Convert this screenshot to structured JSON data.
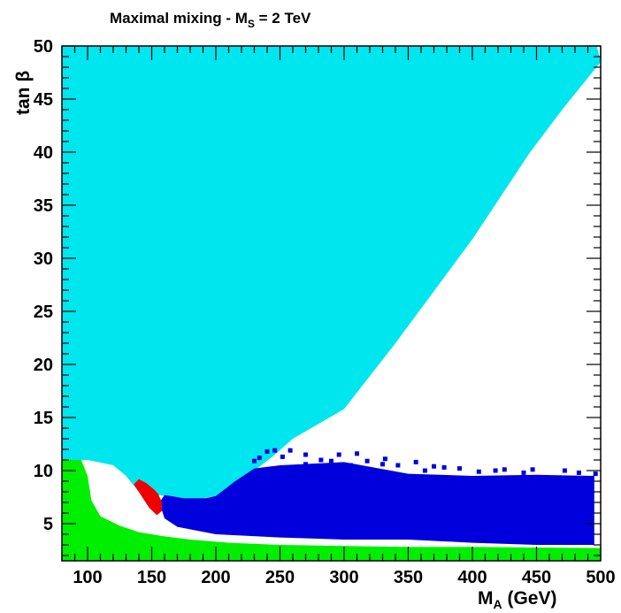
{
  "chart_data": {
    "type": "area",
    "title": "Maximal mixing - M",
    "title_sub": "S",
    "title_suffix": " = 2 TeV",
    "xlabel": "M",
    "xlabel_sub": "A",
    "xlabel_suffix": " (GeV)",
    "ylabel": "tan β",
    "xlim": [
      80,
      500
    ],
    "ylim": [
      1.5,
      50
    ],
    "xticks": [
      100,
      150,
      200,
      250,
      300,
      350,
      400,
      450,
      500
    ],
    "yticks": [
      5,
      10,
      15,
      20,
      25,
      30,
      35,
      40,
      45,
      50
    ],
    "grid": false,
    "colors": {
      "excluded_cyan": "#00e6ee",
      "allowed_blue": "#0000dd",
      "allowed_green": "#00ee00",
      "allowed_red": "#ee0000",
      "background": "#ffffff"
    },
    "regions": [
      {
        "color_key": "excluded_cyan",
        "polygon": [
          [
            80,
            50
          ],
          [
            497,
            50
          ],
          [
            500,
            48.5
          ],
          [
            470,
            44
          ],
          [
            445,
            40
          ],
          [
            400,
            31.8
          ],
          [
            340,
            22
          ],
          [
            300,
            15.8
          ],
          [
            260,
            13
          ],
          [
            245,
            11.4
          ],
          [
            230,
            10
          ],
          [
            200,
            7.6
          ],
          [
            190,
            7.4
          ],
          [
            175,
            7.4
          ],
          [
            155,
            7.7
          ],
          [
            140,
            8
          ],
          [
            130,
            9.5
          ],
          [
            120,
            10.5
          ],
          [
            100,
            11
          ],
          [
            80,
            11
          ]
        ]
      },
      {
        "color_key": "allowed_blue",
        "polygon": [
          [
            160,
            7.7
          ],
          [
            175,
            7.4
          ],
          [
            192,
            7.4
          ],
          [
            200,
            7.6
          ],
          [
            215,
            9
          ],
          [
            230,
            10.2
          ],
          [
            250,
            10.5
          ],
          [
            300,
            10.8
          ],
          [
            350,
            9.7
          ],
          [
            400,
            9.5
          ],
          [
            450,
            9.6
          ],
          [
            495,
            9.5
          ],
          [
            495,
            3.0
          ],
          [
            450,
            3.0
          ],
          [
            400,
            3.2
          ],
          [
            350,
            3.5
          ],
          [
            300,
            3.5
          ],
          [
            250,
            3.7
          ],
          [
            200,
            4
          ],
          [
            170,
            4.7
          ],
          [
            160,
            5.5
          ],
          [
            156,
            7.0
          ]
        ]
      },
      {
        "color_key": "allowed_green",
        "polygon": [
          [
            80,
            1.5
          ],
          [
            500,
            1.5
          ],
          [
            500,
            2.7
          ],
          [
            450,
            2.75
          ],
          [
            400,
            2.8
          ],
          [
            350,
            2.8
          ],
          [
            300,
            2.9
          ],
          [
            250,
            3.0
          ],
          [
            210,
            3.2
          ],
          [
            180,
            3.5
          ],
          [
            160,
            3.8
          ],
          [
            140,
            4.2
          ],
          [
            125,
            4.8
          ],
          [
            110,
            5.7
          ],
          [
            103,
            7.2
          ],
          [
            100,
            9.5
          ],
          [
            95,
            11
          ],
          [
            80,
            11
          ]
        ]
      },
      {
        "color_key": "allowed_red",
        "polygon": [
          [
            136,
            8.7
          ],
          [
            140,
            9.2
          ],
          [
            146,
            8.8
          ],
          [
            152,
            8.2
          ],
          [
            155,
            7.8
          ],
          [
            158,
            7.0
          ],
          [
            158,
            6.2
          ],
          [
            154,
            5.8
          ],
          [
            148,
            6.5
          ],
          [
            141,
            7.8
          ]
        ]
      }
    ],
    "scatter_points": [
      {
        "color_key": "allowed_blue",
        "points": [
          [
            230,
            10.9
          ],
          [
            234,
            11.2
          ],
          [
            240,
            11.8
          ],
          [
            246,
            11.9
          ],
          [
            252,
            11.3
          ],
          [
            258,
            11.9
          ],
          [
            270,
            11.5
          ],
          [
            282,
            11.0
          ],
          [
            290,
            10.9
          ],
          [
            296,
            11.5
          ],
          [
            310,
            11.6
          ],
          [
            318,
            10.9
          ],
          [
            332,
            11.1
          ],
          [
            342,
            10.5
          ],
          [
            356,
            10.8
          ],
          [
            363,
            10.0
          ],
          [
            378,
            10.3
          ],
          [
            390,
            10.2
          ],
          [
            405,
            9.9
          ],
          [
            418,
            10.0
          ],
          [
            425,
            10.1
          ],
          [
            447,
            10.1
          ],
          [
            472,
            10.0
          ],
          [
            483,
            9.8
          ],
          [
            496,
            9.7
          ],
          [
            270,
            10.6
          ],
          [
            305,
            10.5
          ],
          [
            330,
            10.6
          ],
          [
            370,
            10.4
          ],
          [
            440,
            9.8
          ]
        ]
      }
    ]
  }
}
